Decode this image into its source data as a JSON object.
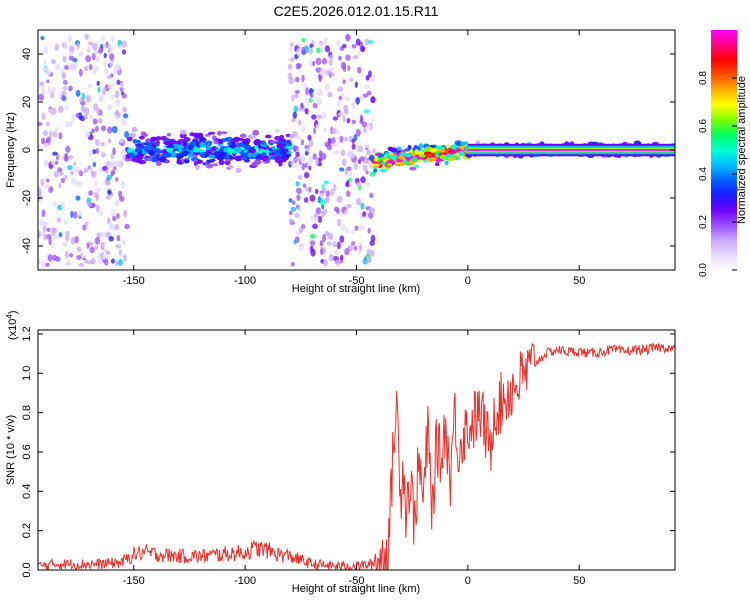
{
  "title": "C2E5.2026.012.01.15.R11",
  "chart_data": [
    {
      "type": "heatmap",
      "xlabel": "Height of straight line (km)",
      "ylabel": "Frequency (Hz)",
      "xlim": [
        -193,
        93
      ],
      "ylim": [
        -50,
        50
      ],
      "x_ticks": [
        -150,
        -100,
        -50,
        0,
        50
      ],
      "y_ticks": [
        -40,
        -20,
        0,
        20,
        40
      ],
      "colorbar": {
        "label": "Normalized spectral amplitude",
        "range": [
          0,
          1
        ],
        "ticks": [
          0.0,
          0.2,
          0.4,
          0.6,
          0.8
        ],
        "tick_labels": [
          "0.0",
          "0.2",
          "0.4",
          "0.6",
          "0.8"
        ],
        "colors": [
          "#ffffff",
          "#e6d9ff",
          "#c9a6ff",
          "#9b4dff",
          "#6a00ff",
          "#1a1aff",
          "#0060ff",
          "#00bfff",
          "#00ffd0",
          "#00ff60",
          "#7dff00",
          "#ffff00",
          "#ffb000",
          "#ff5000",
          "#ff0000",
          "#ff0080",
          "#ff00ff"
        ]
      },
      "regions": [
        {
          "x": [
            -193,
            -153
          ],
          "f_spread": 48,
          "amplitude": 0.18
        },
        {
          "x": [
            -153,
            -80
          ],
          "f_spread": 7,
          "amplitude": 0.35
        },
        {
          "x": [
            -80,
            -42
          ],
          "f_spread": 48,
          "amplitude": 0.22
        },
        {
          "x": [
            -42,
            0
          ],
          "f_center": [
            -5,
            0
          ],
          "f_spread": 4,
          "amplitude": 0.7
        },
        {
          "x": [
            0,
            93
          ],
          "f_center": [
            0,
            0
          ],
          "f_spread": 2.5,
          "amplitude": 0.55
        }
      ]
    },
    {
      "type": "line",
      "xlabel": "Height of straight line (km)",
      "ylabel": "SNR (10 * v/v)",
      "y_multiplier": "(x10",
      "y_multiplier_exp": "4",
      "y_multiplier_close": ")",
      "xlim": [
        -193,
        93
      ],
      "ylim": [
        0,
        1.22
      ],
      "x_ticks": [
        -150,
        -100,
        -50,
        0,
        50
      ],
      "y_ticks": [
        0.0,
        0.2,
        0.4,
        0.6,
        0.8,
        1.0,
        1.2
      ],
      "y_tick_labels": [
        "0.0",
        "0.2",
        "0.4",
        "0.6",
        "0.8",
        "1.0",
        "1.2"
      ],
      "series": [
        {
          "color": "#e8322c",
          "x": [
            -193,
            -185,
            -175,
            -165,
            -155,
            -150,
            -145,
            -140,
            -130,
            -120,
            -110,
            -100,
            -95,
            -90,
            -85,
            -80,
            -75,
            -70,
            -60,
            -50,
            -42,
            -38,
            -36,
            -35,
            -34,
            -33,
            -32,
            -31,
            -30,
            -29,
            -28,
            -26,
            -24,
            -22,
            -20,
            -18,
            -16,
            -14,
            -12,
            -10,
            -8,
            -6,
            -4,
            -2,
            0,
            2,
            4,
            6,
            8,
            10,
            12,
            14,
            16,
            18,
            20,
            22,
            24,
            26,
            28,
            30,
            32,
            35,
            40,
            45,
            50,
            55,
            60,
            65,
            70,
            75,
            80,
            85,
            90,
            93
          ],
          "y": [
            0.02,
            0.03,
            0.03,
            0.03,
            0.04,
            0.08,
            0.09,
            0.08,
            0.07,
            0.07,
            0.08,
            0.09,
            0.11,
            0.1,
            0.08,
            0.07,
            0.05,
            0.03,
            0.02,
            0.02,
            0.03,
            0.06,
            0.12,
            0.25,
            0.5,
            0.7,
            0.85,
            0.6,
            0.4,
            0.55,
            0.3,
            0.45,
            0.25,
            0.55,
            0.35,
            0.7,
            0.3,
            0.65,
            0.55,
            0.75,
            0.45,
            0.8,
            0.6,
            0.7,
            0.72,
            0.75,
            0.78,
            0.8,
            0.7,
            0.6,
            0.85,
            0.82,
            0.88,
            0.9,
            0.92,
            0.95,
            0.97,
            1.0,
            1.02,
            1.05,
            1.07,
            1.1,
            1.12,
            1.11,
            1.11,
            1.1,
            1.11,
            1.12,
            1.11,
            1.12,
            1.12,
            1.13,
            1.13,
            1.12
          ]
        }
      ]
    }
  ]
}
